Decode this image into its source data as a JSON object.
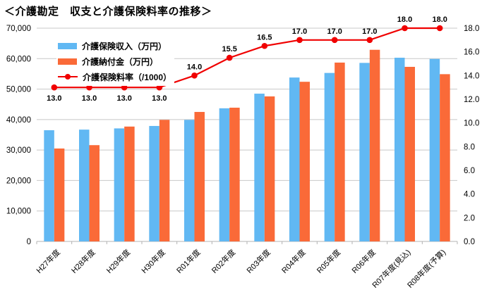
{
  "title": "＜介護勘定　収支と介護保険料率の推移＞",
  "colors": {
    "income_bar": "#61B8F3",
    "payment_bar": "#FA6A38",
    "rate_line": "#F00000",
    "gridline": "#C8C8C8",
    "axis_line": "#B3B3B3",
    "text": "#000000"
  },
  "legend": {
    "items": [
      {
        "label": "介護保険収入（万円）",
        "swatch": "blue-bar-swatch"
      },
      {
        "label": "介護納付金（万円）",
        "swatch": "orange-bar-swatch"
      },
      {
        "label": "介護保険料率（/1000）",
        "swatch": "red-line-swatch"
      }
    ]
  },
  "chart_data": {
    "type": "bar",
    "subtype": "grouped-bars-with-line",
    "title": "＜介護勘定　収支と介護保険料率の推移＞",
    "categories": [
      "H27年度",
      "H28年度",
      "H29年度",
      "H30年度",
      "R01年度",
      "R02年度",
      "R03年度",
      "R04年度",
      "R05年度",
      "R06年度",
      "R07年度(見込)",
      "R08年度(予算)"
    ],
    "series": [
      {
        "name": "介護保険収入（万円）",
        "type": "bar",
        "axis": "left",
        "color": "#61B8F3",
        "values": [
          36500,
          36700,
          37100,
          37900,
          39900,
          43700,
          48500,
          53800,
          55300,
          58600,
          60300,
          59900
        ]
      },
      {
        "name": "介護納付金（万円）",
        "type": "bar",
        "axis": "left",
        "color": "#FA6A38",
        "values": [
          30500,
          31600,
          37700,
          39900,
          42500,
          43900,
          47600,
          52400,
          58700,
          62900,
          57300,
          54900
        ]
      },
      {
        "name": "介護保険料率（/1000）",
        "type": "line",
        "axis": "right",
        "color": "#F00000",
        "values": [
          13.0,
          13.0,
          13.0,
          13.0,
          14.0,
          15.5,
          16.5,
          17.0,
          17.0,
          17.0,
          18.0,
          18.0
        ],
        "labels": [
          "13.0",
          "13.0",
          "13.0",
          "13.0",
          "14.0",
          "15.5",
          "16.5",
          "17.0",
          "17.0",
          "17.0",
          "18.0",
          "18.0"
        ],
        "label_side": [
          "below",
          "below",
          "below",
          "below",
          "above",
          "above",
          "above",
          "above",
          "above",
          "above",
          "above",
          "above"
        ]
      }
    ],
    "axes": {
      "left": {
        "min": 0,
        "max": 70000,
        "step": 10000,
        "tick_labels": [
          "0",
          "10,000",
          "20,000",
          "30,000",
          "40,000",
          "50,000",
          "60,000",
          "70,000"
        ]
      },
      "right": {
        "min": 0,
        "max": 18,
        "step": 2,
        "tick_labels": [
          "0.0",
          "2.0",
          "4.0",
          "6.0",
          "8.0",
          "10.0",
          "12.0",
          "14.0",
          "16.0",
          "18.0"
        ]
      }
    },
    "grid": "horizontal-left-axis",
    "legend_position": "top-left-inside",
    "x_label_rotation_deg": -45
  }
}
